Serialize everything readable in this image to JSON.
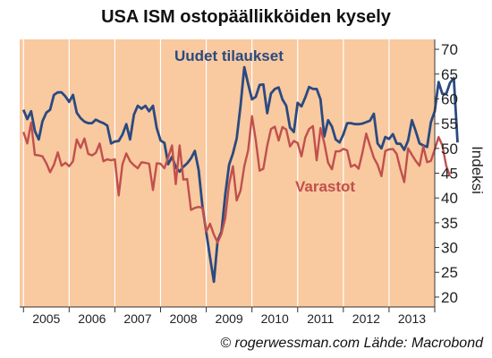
{
  "chart_data": {
    "type": "line",
    "title": "USA ISM ostopäällikköiden kysely",
    "ylabel": "Indeksi",
    "xlabel": "",
    "ylim": [
      18,
      72
    ],
    "yticks": [
      20,
      25,
      30,
      35,
      40,
      45,
      50,
      55,
      60,
      65,
      70
    ],
    "xlim": [
      2004.917,
      2014.0
    ],
    "xtick_labels": [
      "2005",
      "2006",
      "2007",
      "2008",
      "2009",
      "2010",
      "2011",
      "2012",
      "2013"
    ],
    "grid": "vertical",
    "background_color": "#f9c9a0",
    "series": [
      {
        "name": "Uudet tilaukset",
        "color": "#2a4a80",
        "x_start": 2005.0,
        "step_months": 1,
        "values": [
          57.8,
          55.9,
          57.5,
          53.5,
          51.8,
          55.5,
          57.2,
          57.8,
          60.8,
          61.3,
          61.3,
          60.5,
          59.4,
          60.8,
          57.2,
          56.1,
          55.4,
          55.1,
          55.1,
          55.8,
          55.4,
          55.1,
          54.6,
          51.0,
          51.4,
          51.5,
          52.8,
          54.9,
          51.8,
          56.8,
          58.6,
          58.0,
          58.6,
          57.5,
          58.6,
          54.1,
          51.6,
          51.1,
          46.8,
          48.3,
          46.2,
          45.3,
          46.3,
          47.0,
          48.0,
          49.5,
          45.6,
          38.3,
          33.1,
          28.0,
          23.1,
          31.4,
          33.2,
          40.8,
          46.7,
          49.0,
          52.0,
          58.6,
          66.4,
          63.0,
          59.9,
          60.4,
          62.8,
          62.9,
          57.1,
          61.1,
          62.0,
          62.3,
          59.9,
          58.6,
          54.2,
          53.3,
          59.2,
          58.5,
          60.3,
          62.4,
          62.0,
          62.0,
          59.9,
          52.4,
          55.7,
          54.4,
          51.8,
          51.2,
          52.8,
          55.1,
          55.1,
          54.9,
          54.9,
          55.0,
          55.3,
          55.6,
          57.0,
          51.0,
          50.0,
          52.3,
          51.9,
          52.9,
          51.0,
          50.9,
          49.7,
          51.6,
          55.7,
          53.5,
          51.0,
          50.6,
          50.3,
          55.3,
          57.5,
          63.4,
          61.0,
          61.0,
          63.2,
          64.2,
          51.2
        ]
      },
      {
        "name": "Varastot",
        "color": "#c0504d",
        "x_start": 2005.0,
        "step_months": 1,
        "values": [
          53.3,
          51.0,
          55.2,
          48.7,
          48.6,
          48.4,
          47.0,
          45.2,
          46.7,
          49.2,
          46.5,
          47.1,
          46.4,
          47.4,
          51.8,
          50.1,
          52.0,
          48.9,
          48.6,
          49.1,
          51.0,
          47.4,
          47.8,
          47.6,
          47.8,
          40.5,
          46.8,
          49.0,
          47.4,
          46.6,
          46.0,
          47.2,
          47.1,
          46.9,
          41.6,
          47.0,
          46.9,
          46.0,
          48.2,
          50.6,
          42.8,
          50.6,
          43.7,
          43.8,
          37.6,
          38.0,
          38.2,
          38.0,
          33.2,
          34.8,
          32.6,
          31.0,
          32.8,
          36.0,
          42.8,
          46.4,
          39.5,
          41.5,
          46.4,
          49.6,
          56.5,
          51.7,
          45.5,
          45.9,
          50.5,
          53.9,
          54.4,
          51.6,
          54.3,
          53.8,
          50.4,
          51.5,
          51.1,
          48.4,
          52.2,
          53.9,
          54.5,
          47.6,
          54.1,
          51.1,
          47.1,
          45.8,
          49.4,
          49.4,
          49.9,
          49.6,
          46.3,
          46.7,
          45.9,
          49.1,
          53.0,
          50.5,
          48.1,
          46.7,
          44.4,
          49.5,
          49.8,
          49.9,
          48.9,
          45.8,
          43.2,
          50.0,
          48.7,
          47.5,
          46.5,
          50.4,
          47.2,
          47.5,
          49.8,
          52.3,
          50.6,
          46.5,
          44.4
        ]
      }
    ],
    "annotations": [
      {
        "text": "Uudet tilaukset",
        "series": "Uudet tilaukset"
      },
      {
        "text": "Varastot",
        "series": "Varastot"
      }
    ]
  },
  "credit": "© rogerwessman.com Lähde: Macrobond"
}
